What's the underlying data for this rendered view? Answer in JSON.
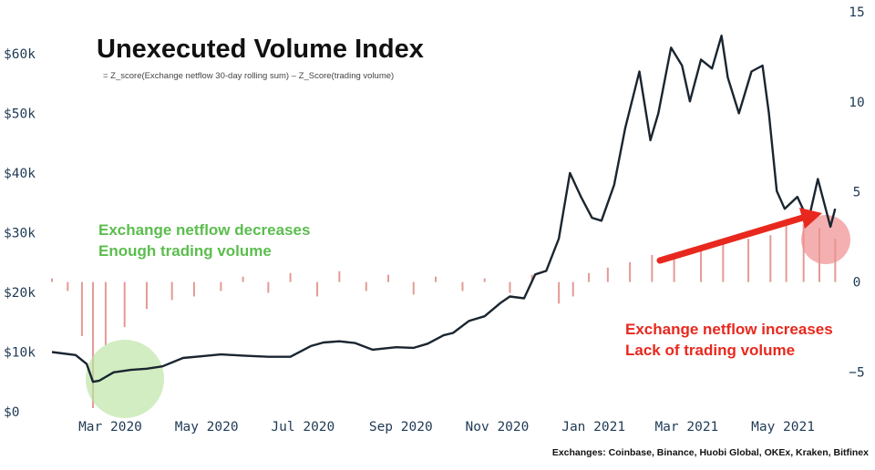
{
  "header": {
    "title": "Unexecuted Volume Index",
    "subtitle": "= Z_score(Exchange netflow 30-day rolling sum) – Z_Score(trading volume)"
  },
  "annotations": {
    "green_line1": "Exchange netflow decreases",
    "green_line2": "Enough trading volume",
    "red_line1": "Exchange netflow increases",
    "red_line2": "Lack of trading volume"
  },
  "footer": {
    "exchanges": "Exchanges: Coinbase, Binance, Huobi Global, OKEx, Kraken, Bitfinex"
  },
  "colors": {
    "price_line": "#1a2530",
    "bars": "#e49a95",
    "green_text": "#5cbd4e",
    "green_circle": "#b9e49f",
    "red_text": "#e8281e",
    "red_circle": "#f08f8f",
    "arrow": "#e8281e",
    "tick_text": "#1f3a55"
  },
  "chart_data": {
    "type": "line",
    "title": "Unexecuted Volume Index",
    "xlabel": "",
    "x_ticks": [
      "Mar 2020",
      "May 2020",
      "Jul 2020",
      "Sep 2020",
      "Nov 2020",
      "Jan 2021",
      "Mar 2021",
      "May 2021"
    ],
    "y_left": {
      "ticks": [
        "$0",
        "$10k",
        "$20k",
        "$30k",
        "$40k",
        "$50k",
        "$60k"
      ],
      "ylim": [
        0,
        67000
      ]
    },
    "y_right": {
      "ticks": [
        "−5",
        "0",
        "5",
        "10",
        "15"
      ],
      "ylim": [
        -7.2,
        15
      ]
    },
    "series": [
      {
        "axis": "left",
        "style": "line",
        "x": [
          "2020-02-15",
          "2020-03-01",
          "2020-03-08",
          "2020-03-12",
          "2020-03-16",
          "2020-03-25",
          "2020-04-05",
          "2020-04-15",
          "2020-04-25",
          "2020-05-08",
          "2020-05-20",
          "2020-06-01",
          "2020-06-15",
          "2020-07-01",
          "2020-07-15",
          "2020-07-28",
          "2020-08-05",
          "2020-08-15",
          "2020-08-25",
          "2020-09-05",
          "2020-09-20",
          "2020-10-01",
          "2020-10-10",
          "2020-10-20",
          "2020-10-26",
          "2020-11-05",
          "2020-11-15",
          "2020-11-25",
          "2020-12-01",
          "2020-12-10",
          "2020-12-17",
          "2020-12-24",
          "2021-01-01",
          "2021-01-08",
          "2021-01-15",
          "2021-01-22",
          "2021-01-28",
          "2021-02-05",
          "2021-02-12",
          "2021-02-21",
          "2021-02-28",
          "2021-03-05",
          "2021-03-13",
          "2021-03-20",
          "2021-03-25",
          "2021-04-01",
          "2021-04-08",
          "2021-04-14",
          "2021-04-18",
          "2021-04-25",
          "2021-05-03",
          "2021-05-10",
          "2021-05-14",
          "2021-05-19",
          "2021-05-24",
          "2021-06-01",
          "2021-06-08",
          "2021-06-14",
          "2021-06-22",
          "2021-06-25"
        ],
        "values": [
          10000,
          9500,
          8000,
          5000,
          5200,
          6600,
          7000,
          7200,
          7600,
          9000,
          9300,
          9600,
          9400,
          9200,
          9200,
          11000,
          11600,
          11800,
          11500,
          10400,
          10800,
          10700,
          11400,
          12800,
          13200,
          15200,
          16000,
          18200,
          19300,
          19000,
          23000,
          23600,
          29000,
          40000,
          36000,
          32500,
          32000,
          38000,
          47500,
          57000,
          45500,
          50000,
          61000,
          58000,
          52000,
          59000,
          57500,
          63000,
          56000,
          50000,
          57000,
          58000,
          50000,
          37000,
          34000,
          36000,
          32000,
          39000,
          31000,
          34000
        ]
      },
      {
        "axis": "right",
        "style": "bars",
        "name": "",
        "x": [
          "2020-02-15",
          "2020-02-25",
          "2020-03-05",
          "2020-03-12",
          "2020-03-20",
          "2020-04-01",
          "2020-04-15",
          "2020-05-01",
          "2020-05-15",
          "2020-06-01",
          "2020-06-15",
          "2020-07-01",
          "2020-07-15",
          "2020-08-01",
          "2020-08-15",
          "2020-09-01",
          "2020-09-15",
          "2020-10-01",
          "2020-10-15",
          "2020-11-01",
          "2020-11-15",
          "2020-12-01",
          "2020-12-15",
          "2021-01-01",
          "2021-01-10",
          "2021-01-20",
          "2021-02-01",
          "2021-02-15",
          "2021-03-01",
          "2021-03-15",
          "2021-04-01",
          "2021-04-15",
          "2021-05-01",
          "2021-05-15",
          "2021-05-25",
          "2021-06-05",
          "2021-06-15",
          "2021-06-25"
        ],
        "values": [
          0.2,
          -0.5,
          -3.0,
          -7.0,
          -3.5,
          -2.5,
          -1.5,
          -1.0,
          -0.8,
          -0.5,
          0.3,
          -0.6,
          0.5,
          -0.8,
          0.6,
          -0.5,
          0.4,
          -0.7,
          0.3,
          -0.5,
          0.2,
          -0.6,
          0.4,
          -1.2,
          -0.8,
          0.5,
          0.8,
          1.1,
          1.5,
          1.4,
          1.9,
          2.1,
          2.4,
          2.6,
          3.5,
          3.2,
          3.0,
          2.4
        ]
      }
    ]
  }
}
